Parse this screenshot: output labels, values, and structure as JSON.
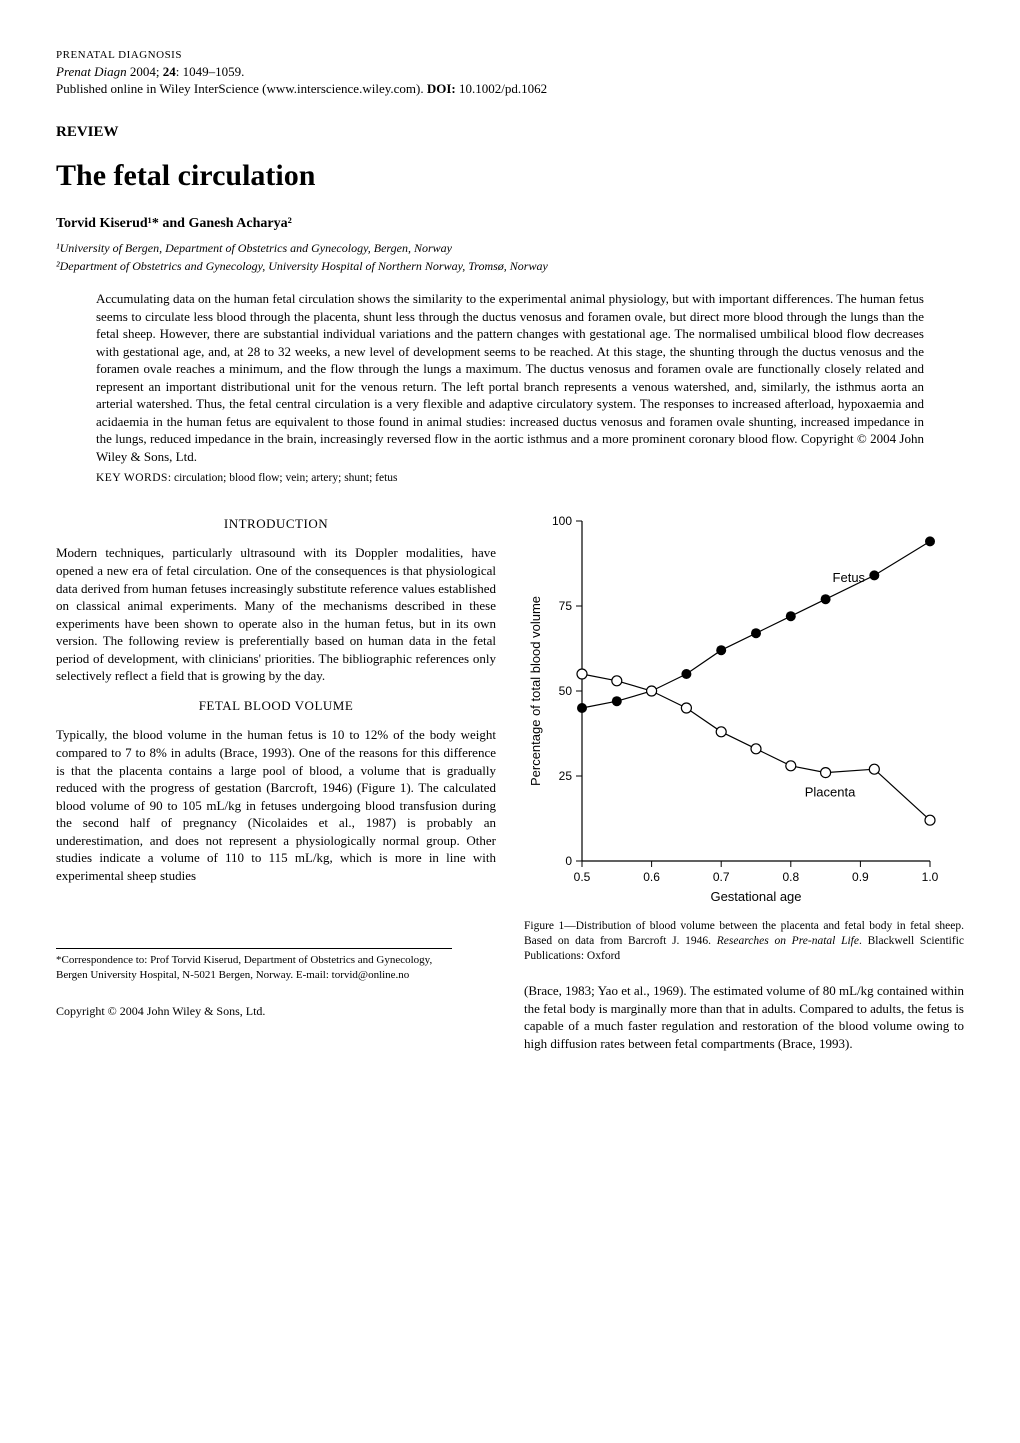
{
  "header": {
    "journal_caps": "PRENATAL DIAGNOSIS",
    "journal_italic": "Prenat Diagn",
    "year": "2004;",
    "volume": "24",
    "pages": ": 1049–1059.",
    "pub_line_prefix": "Published online in Wiley InterScience (www.interscience.wiley.com). ",
    "doi_label": "DOI:",
    "doi_value": " 10.1002/pd.1062"
  },
  "labels": {
    "review": "REVIEW",
    "keywords_label": "KEY WORDS"
  },
  "title": "The fetal circulation",
  "authors": "Torvid Kiserud¹* and Ganesh Acharya²",
  "affiliations": [
    "¹University of Bergen, Department of Obstetrics and Gynecology, Bergen, Norway",
    "²Department of Obstetrics and Gynecology, University Hospital of Northern Norway, Tromsø, Norway"
  ],
  "abstract": "Accumulating data on the human fetal circulation shows the similarity to the experimental animal physiology, but with important differences. The human fetus seems to circulate less blood through the placenta, shunt less through the ductus venosus and foramen ovale, but direct more blood through the lungs than the fetal sheep. However, there are substantial individual variations and the pattern changes with gestational age. The normalised umbilical blood flow decreases with gestational age, and, at 28 to 32 weeks, a new level of development seems to be reached. At this stage, the shunting through the ductus venosus and the foramen ovale reaches a minimum, and the flow through the lungs a maximum. The ductus venosus and foramen ovale are functionally closely related and represent an important distributional unit for the venous return. The left portal branch represents a venous watershed, and, similarly, the isthmus aorta an arterial watershed. Thus, the fetal central circulation is a very flexible and adaptive circulatory system. The responses to increased afterload, hypoxaemia and acidaemia in the human fetus are equivalent to those found in animal studies: increased ductus venosus and foramen ovale shunting, increased impedance in the lungs, reduced impedance in the brain, increasingly reversed flow in the aortic isthmus and a more prominent coronary blood flow. Copyright © 2004 John Wiley & Sons, Ltd.",
  "keywords_text": ": circulation; blood flow; vein; artery; shunt; fetus",
  "sections": {
    "intro_heading": "INTRODUCTION",
    "intro_para": "Modern techniques, particularly ultrasound with its Doppler modalities, have opened a new era of fetal circulation. One of the consequences is that physiological data derived from human fetuses increasingly substitute reference values established on classical animal experiments. Many of the mechanisms described in these experiments have been shown to operate also in the human fetus, but in its own version. The following review is preferentially based on human data in the fetal period of development, with clinicians' priorities. The bibliographic references only selectively reflect a field that is growing by the day.",
    "fbv_heading": "FETAL BLOOD VOLUME",
    "fbv_para": "Typically, the blood volume in the human fetus is 10 to 12% of the body weight compared to 7 to 8% in adults (Brace, 1993). One of the reasons for this difference is that the placenta contains a large pool of blood, a volume that is gradually reduced with the progress of gestation (Barcroft, 1946) (Figure 1). The calculated blood volume of 90 to 105 mL/kg in fetuses undergoing blood transfusion during the second half of pregnancy (Nicolaides et al., 1987) is probably an underestimation, and does not represent a physiologically normal group. Other studies indicate a volume of 110 to 115 mL/kg, which is more in line with experimental sheep studies",
    "right_col_para": "(Brace, 1983; Yao et al., 1969). The estimated volume of 80 mL/kg contained within the fetal body is marginally more than that in adults. Compared to adults, the fetus is capable of a much faster regulation and restoration of the blood volume owing to high diffusion rates between fetal compartments (Brace, 1993)."
  },
  "footer": {
    "correspondence": "*Correspondence to: Prof Torvid Kiserud, Department of Obstetrics and Gynecology, Bergen University Hospital, N-5021 Bergen, Norway. E-mail: torvid@online.no",
    "copyright": "Copyright © 2004 John Wiley & Sons, Ltd."
  },
  "figure1": {
    "type": "line-scatter",
    "xlabel": "Gestational age",
    "ylabel": "Percentage of total blood volume",
    "xlim": [
      0.5,
      1.0
    ],
    "ylim": [
      0,
      100
    ],
    "xticks": [
      0.5,
      0.6,
      0.7,
      0.8,
      0.9,
      1.0
    ],
    "yticks": [
      0,
      25,
      50,
      75,
      100
    ],
    "label_fontsize": 13,
    "tick_fontsize": 12,
    "axis_color": "#000000",
    "background_color": "#ffffff",
    "line_width": 1.2,
    "marker_size": 5,
    "series": [
      {
        "name": "Fetus",
        "label": "Fetus",
        "label_x": 0.86,
        "label_y": 82,
        "marker": "filled-circle",
        "color": "#000000",
        "points": [
          {
            "x": 0.5,
            "y": 45
          },
          {
            "x": 0.55,
            "y": 47
          },
          {
            "x": 0.6,
            "y": 50
          },
          {
            "x": 0.65,
            "y": 55
          },
          {
            "x": 0.7,
            "y": 62
          },
          {
            "x": 0.75,
            "y": 67
          },
          {
            "x": 0.8,
            "y": 72
          },
          {
            "x": 0.85,
            "y": 77
          },
          {
            "x": 0.92,
            "y": 84
          },
          {
            "x": 1.0,
            "y": 94
          }
        ]
      },
      {
        "name": "Placenta",
        "label": "Placenta",
        "label_x": 0.82,
        "label_y": 19,
        "marker": "open-circle",
        "color": "#000000",
        "points": [
          {
            "x": 0.5,
            "y": 55
          },
          {
            "x": 0.55,
            "y": 53
          },
          {
            "x": 0.6,
            "y": 50
          },
          {
            "x": 0.65,
            "y": 45
          },
          {
            "x": 0.7,
            "y": 38
          },
          {
            "x": 0.75,
            "y": 33
          },
          {
            "x": 0.8,
            "y": 28
          },
          {
            "x": 0.85,
            "y": 26
          },
          {
            "x": 0.92,
            "y": 27
          },
          {
            "x": 1.0,
            "y": 12
          }
        ]
      }
    ],
    "caption_prefix": "Figure 1—Distribution of blood volume between the placenta and fetal body in fetal sheep. Based on data from Barcroft J. 1946. ",
    "caption_italic": "Researches on Pre-natal Life",
    "caption_suffix": ". Blackwell Scientific Publications: Oxford"
  }
}
